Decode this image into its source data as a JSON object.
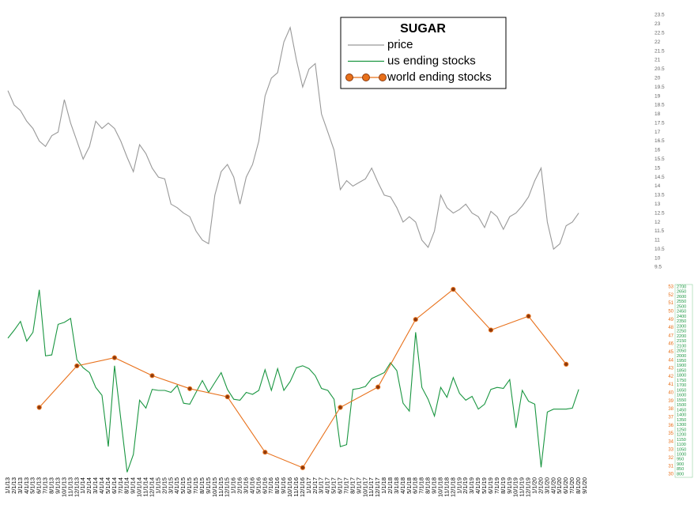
{
  "chart_data": {
    "type": "line",
    "title": "SUGAR",
    "categories": [
      "1/1/13",
      "2/1/13",
      "3/1/13",
      "4/1/13",
      "5/1/13",
      "6/1/13",
      "7/1/13",
      "8/1/13",
      "9/1/13",
      "10/1/13",
      "11/1/13",
      "12/1/13",
      "1/1/14",
      "2/1/14",
      "3/1/14",
      "4/1/14",
      "5/1/14",
      "6/1/14",
      "7/1/14",
      "8/1/14",
      "9/1/14",
      "10/1/14",
      "11/1/14",
      "12/1/14",
      "1/1/15",
      "2/1/15",
      "3/1/15",
      "4/1/15",
      "5/1/15",
      "6/1/15",
      "7/1/15",
      "8/1/15",
      "9/1/15",
      "10/1/15",
      "11/1/15",
      "12/1/15",
      "1/1/16",
      "2/1/16",
      "3/1/16",
      "4/1/16",
      "5/1/16",
      "6/1/16",
      "7/1/16",
      "8/1/16",
      "9/1/16",
      "10/1/16",
      "11/1/16",
      "12/1/16",
      "1/1/17",
      "2/1/17",
      "3/1/17",
      "4/1/17",
      "5/1/17",
      "6/1/17",
      "7/1/17",
      "8/1/17",
      "9/1/17",
      "10/1/17",
      "11/1/17",
      "12/1/17",
      "1/1/18",
      "2/1/18",
      "3/1/18",
      "4/1/18",
      "5/1/18",
      "6/1/18",
      "7/1/18",
      "8/1/18",
      "9/1/18",
      "10/1/18",
      "11/1/18",
      "12/1/18",
      "1/1/19",
      "2/1/19",
      "3/1/19",
      "4/1/19",
      "5/1/19",
      "6/1/19",
      "7/1/19",
      "8/1/19",
      "9/1/19",
      "10/1/19",
      "11/1/19",
      "12/1/19",
      "1/1/20",
      "2/1/20",
      "3/1/20",
      "4/1/20",
      "5/1/20",
      "6/1/20",
      "7/1/20",
      "8/1/20",
      "9/1/20"
    ],
    "series": [
      {
        "name": "price",
        "color": "#999999",
        "axis": "y",
        "values": [
          19.3,
          18.5,
          18.2,
          17.6,
          17.2,
          16.5,
          16.2,
          16.8,
          17,
          18.8,
          17.5,
          16.5,
          15.5,
          16.2,
          17.6,
          17.2,
          17.5,
          17.2,
          16.5,
          15.6,
          14.8,
          16.3,
          15.8,
          15,
          14.5,
          14.4,
          13,
          12.8,
          12.5,
          12.3,
          11.5,
          11,
          10.8,
          13.5,
          14.8,
          15.2,
          14.5,
          13,
          14.5,
          15.2,
          16.5,
          19,
          20,
          20.3,
          22,
          22.8,
          21,
          19.5,
          20.5,
          20.8,
          18,
          17,
          16,
          13.8,
          14.3,
          14,
          14.2,
          14.4,
          15,
          14.2,
          13.5,
          13.4,
          12.8,
          12,
          12.3,
          12,
          11,
          10.6,
          11.5,
          13.5,
          12.8,
          12.5,
          12.7,
          13,
          12.5,
          12.3,
          11.7,
          12.6,
          12.3,
          11.6,
          12.3,
          12.5,
          12.9,
          13.4,
          14.3,
          15,
          12,
          10.5,
          10.8,
          11.8,
          12,
          12.5,
          null
        ]
      },
      {
        "name": "us ending stocks",
        "color": "#1a9641",
        "axis": "y3",
        "values": [
          2180,
          2260,
          2350,
          2150,
          2240,
          2670,
          2000,
          2010,
          2320,
          2340,
          2380,
          1960,
          1880,
          1830,
          1680,
          1600,
          1080,
          1900,
          1360,
          820,
          1000,
          1550,
          1470,
          1660,
          1650,
          1650,
          1630,
          1700,
          1520,
          1510,
          1630,
          1750,
          1630,
          1730,
          1830,
          1660,
          1560,
          1550,
          1630,
          1610,
          1650,
          1860,
          1650,
          1870,
          1650,
          1740,
          1880,
          1900,
          1870,
          1800,
          1670,
          1650,
          1560,
          1080,
          1100,
          1660,
          1670,
          1690,
          1770,
          1800,
          1830,
          1930,
          1850,
          1520,
          1440,
          2240,
          1680,
          1560,
          1390,
          1680,
          1580,
          1780,
          1620,
          1550,
          1590,
          1460,
          1510,
          1660,
          1680,
          1670,
          1760,
          1270,
          1650,
          1540,
          1510,
          870,
          1430,
          1460,
          1460,
          1460,
          1470,
          1660,
          null
        ]
      },
      {
        "name": "world ending stocks",
        "color": "#e8701a",
        "axis": "y2",
        "markers": true,
        "x": [
          "6/1/13",
          "12/1/13",
          "6/1/14",
          "12/1/14",
          "6/1/15",
          "12/1/15",
          "6/1/16",
          "12/1/16",
          "6/1/17",
          "12/1/17",
          "6/1/18",
          "12/1/18",
          "6/1/19",
          "12/1/19",
          "6/1/20"
        ],
        "values": [
          38.2,
          43.3,
          44.3,
          42.1,
          40.5,
          39.5,
          32.7,
          30.8,
          38.2,
          40.7,
          49,
          52.7,
          47.7,
          49.4,
          43.5
        ]
      }
    ],
    "ylim": [
      9.5,
      23.5
    ],
    "yticks": [
      9.5,
      10,
      10.5,
      11,
      11.5,
      12,
      12.5,
      13,
      13.5,
      14,
      14.5,
      15,
      15.5,
      16,
      16.5,
      17,
      17.5,
      18,
      18.5,
      19,
      19.5,
      20,
      20.5,
      21,
      21.5,
      22,
      22.5,
      23,
      23.5
    ],
    "y2lim": [
      30,
      53
    ],
    "y2ticks": [
      30,
      31,
      32,
      33,
      34,
      35,
      36,
      37,
      38,
      39,
      40,
      41,
      42,
      43,
      44,
      45,
      46,
      47,
      48,
      49,
      50,
      51,
      52,
      53
    ],
    "y3lim": [
      800,
      2700
    ],
    "y3ticks": [
      800,
      850,
      900,
      950,
      1000,
      1050,
      1100,
      1150,
      1200,
      1250,
      1300,
      1350,
      1400,
      1450,
      1500,
      1550,
      1600,
      1650,
      1700,
      1750,
      1800,
      1850,
      1900,
      1950,
      2000,
      2050,
      2100,
      2150,
      2200,
      2250,
      2300,
      2350,
      2400,
      2450,
      2500,
      2550,
      2600,
      2650,
      2700
    ]
  }
}
